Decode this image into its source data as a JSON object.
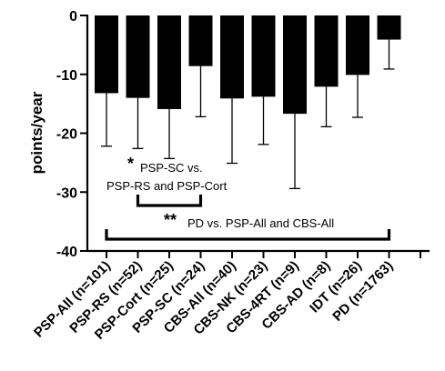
{
  "chart_data": {
    "type": "bar",
    "ylabel": "points/year",
    "ylim": [
      -40,
      0
    ],
    "yticks": [
      0,
      -10,
      -20,
      -30,
      -40
    ],
    "categories": [
      "PSP-All (n=101)",
      "PSP-RS (n=52)",
      "PSP-Cort (n=25)",
      "PSP-SC (n=24)",
      "CBS-All (n=40)",
      "CBS-NK (n=23)",
      "CBS-4RT (n=9)",
      "CBS-AD (n=8)",
      "IDT (n=26)",
      "PD (n=1763)"
    ],
    "values": [
      -13.2,
      -14.0,
      -15.9,
      -8.6,
      -14.1,
      -13.8,
      -16.7,
      -12.1,
      -10.1,
      -4.1
    ],
    "error_lower": [
      -22.2,
      -22.6,
      -24.3,
      -17.2,
      -25.1,
      -21.9,
      -29.4,
      -18.9,
      -17.3,
      -9.1
    ],
    "annotations": [
      {
        "marker": "*",
        "text_line1": "PSP-SC vs.",
        "text_line2": "PSP-RS and PSP-Cort",
        "from_category": 1,
        "to_category": 3
      },
      {
        "marker": "**",
        "text": "PD vs. PSP-All and CBS-All",
        "from_category": 0,
        "to_category": 9
      }
    ],
    "bar_color": "#000000",
    "grid": false,
    "legend": "none"
  }
}
